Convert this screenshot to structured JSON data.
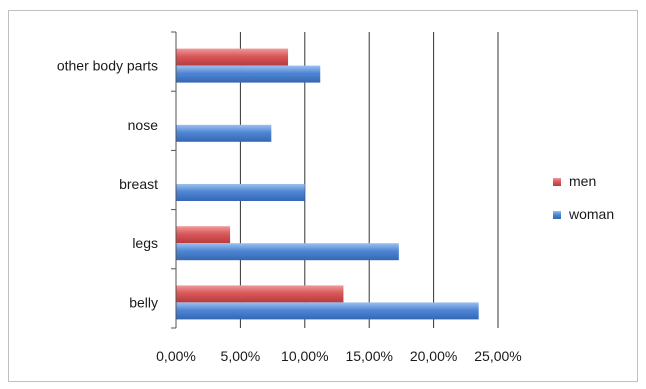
{
  "chart_data": {
    "type": "bar",
    "orientation": "horizontal",
    "categories": [
      "belly",
      "legs",
      "breast",
      "nose",
      "other body parts"
    ],
    "series": [
      {
        "name": "men",
        "values": [
          13.0,
          4.2,
          0,
          0,
          8.7
        ],
        "color": "#d9585a"
      },
      {
        "name": "woman",
        "values": [
          23.5,
          17.3,
          10.0,
          7.4,
          11.2
        ],
        "color": "#4f86d4"
      }
    ],
    "xlim": [
      0,
      25
    ],
    "xticks": [
      "0,00%",
      "5,00%",
      "10,00%",
      "15,00%",
      "20,00%",
      "25,00%"
    ],
    "grid": "vertical",
    "legend": "right"
  }
}
